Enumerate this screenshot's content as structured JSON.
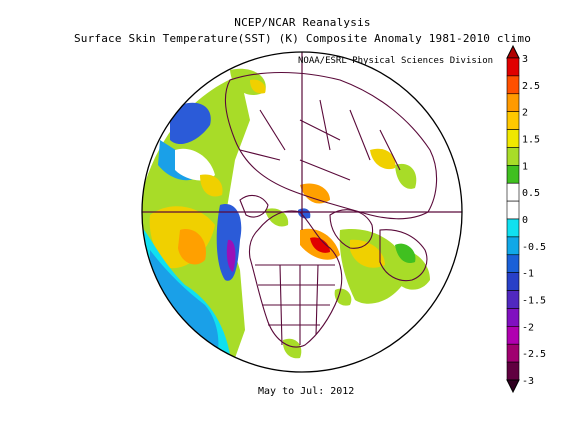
{
  "titles": {
    "line1": "NCEP/NCAR Reanalysis",
    "line2": "Surface Skin Temperature(SST) (K) Composite Anomaly 1981-2010 climo",
    "credit": "NOAA/ESRL Physical Sciences Division",
    "period": "May to Jul: 2012"
  },
  "map": {
    "projection": "north-polar-stereographic",
    "grid": true,
    "land_outline_color": "#5a0a3a",
    "ocean_anomaly_regions": [
      {
        "region": "north-pacific-gulf-of-alaska",
        "level": "1 to 1.5",
        "color": "#f0d000"
      },
      {
        "region": "north-pacific-central",
        "level": "0.5 to 1",
        "color": "#a8dc28"
      },
      {
        "region": "north-pacific-coast",
        "level": "-1.5 to -1",
        "color": "#2b5bd8"
      },
      {
        "region": "bering-sea",
        "level": "-1 to -0.5",
        "color": "#1aa0e8"
      },
      {
        "region": "hudson-bay",
        "level": "1.5 to 2",
        "color": "#ffa000"
      },
      {
        "region": "north-atlantic",
        "level": "0.5 to 1",
        "color": "#a8dc28"
      },
      {
        "region": "north-of-alaska",
        "level": "-2.5 to -2",
        "color": "#9a10b8"
      },
      {
        "region": "east-of-japan",
        "level": "-1 to -0.5",
        "color": "#1aa0e8"
      }
    ]
  },
  "colorbar": {
    "ticks": [
      "3",
      "2.5",
      "2",
      "1.5",
      "1",
      "0.5",
      "0",
      "-0.5",
      "-1",
      "-1.5",
      "-2",
      "-2.5",
      "-3"
    ],
    "colors": [
      "#e00000",
      "#ff5000",
      "#ff9a00",
      "#ffc800",
      "#f0e800",
      "#a8dc28",
      "#40c020",
      "#ffffff",
      "#ffffff",
      "#10e0f0",
      "#10a8e8",
      "#1a60d8",
      "#2840c8",
      "#5028c0",
      "#8010c0",
      "#b000b0",
      "#a00070",
      "#600040"
    ]
  }
}
